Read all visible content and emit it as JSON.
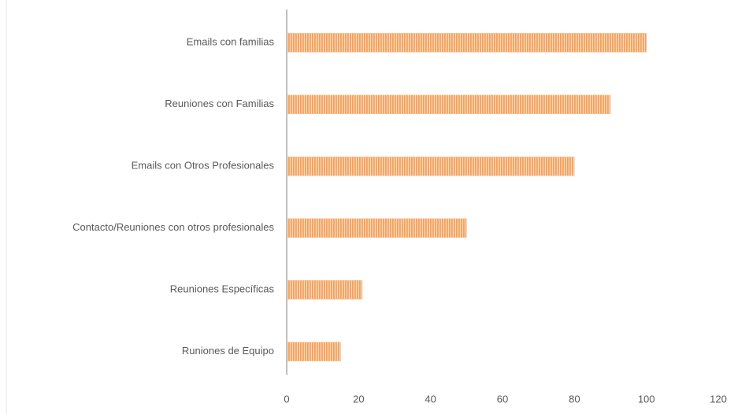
{
  "chart_data": {
    "type": "bar",
    "orientation": "horizontal",
    "categories": [
      "Emails con familias",
      "Reuniones con Familias",
      "Emails con Otros Profesionales",
      "Contacto/Reuniones con otros profesionales",
      "Reuniones Específicas",
      "Runiones de Equipo"
    ],
    "values": [
      100,
      90,
      80,
      50,
      21,
      15
    ],
    "color": "#f4a15d",
    "xlim": [
      0,
      120
    ],
    "xticks": [
      0,
      20,
      40,
      60,
      80,
      100,
      120
    ],
    "grid": false
  }
}
